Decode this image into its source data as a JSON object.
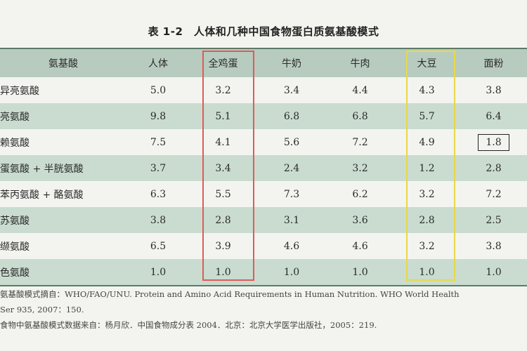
{
  "title": "表 1-2　人体和几种中国食物蛋白质氨基酸模式",
  "table": {
    "headers": [
      "氨基酸",
      "人体",
      "全鸡蛋",
      "牛奶",
      "牛肉",
      "大豆",
      "面粉"
    ],
    "rows": [
      [
        "异亮氨酸",
        "5.0",
        "3.2",
        "3.4",
        "4.4",
        "4.3",
        "3.8"
      ],
      [
        "亮氨酸",
        "9.8",
        "5.1",
        "6.8",
        "6.8",
        "5.7",
        "6.4"
      ],
      [
        "赖氨酸",
        "7.5",
        "4.1",
        "5.6",
        "7.2",
        "4.9",
        "1.8"
      ],
      [
        "蛋氨酸 + 半胱氨酸",
        "3.7",
        "3.4",
        "2.4",
        "3.2",
        "1.2",
        "2.8"
      ],
      [
        "苯丙氨酸 + 酪氨酸",
        "6.3",
        "5.5",
        "7.3",
        "6.2",
        "3.2",
        "7.2"
      ],
      [
        "苏氨酸",
        "3.8",
        "2.8",
        "3.1",
        "3.6",
        "2.8",
        "2.5"
      ],
      [
        "缬氨酸",
        "6.5",
        "3.9",
        "4.6",
        "4.6",
        "3.2",
        "3.8"
      ],
      [
        "色氨酸",
        "1.0",
        "1.0",
        "1.0",
        "1.0",
        "1.0",
        "1.0"
      ]
    ]
  },
  "notes": [
    "氨基酸模式摘自：WHO/FAO/UNU. Protein and Amino Acid Requirements in Human Nutrition. WHO World Health",
    "Ser 935, 2007：150.",
    "食物中氨基酸模式数据来自：杨月欣．中国食物成分表 2004．北京：北京大学医学出版社，2005：219."
  ],
  "colors": {
    "header_bg": "#b8cbbf",
    "tint_bg": "#c9dccf",
    "highlight_red": "#e05a5a",
    "highlight_yellow": "#e8d84a"
  }
}
